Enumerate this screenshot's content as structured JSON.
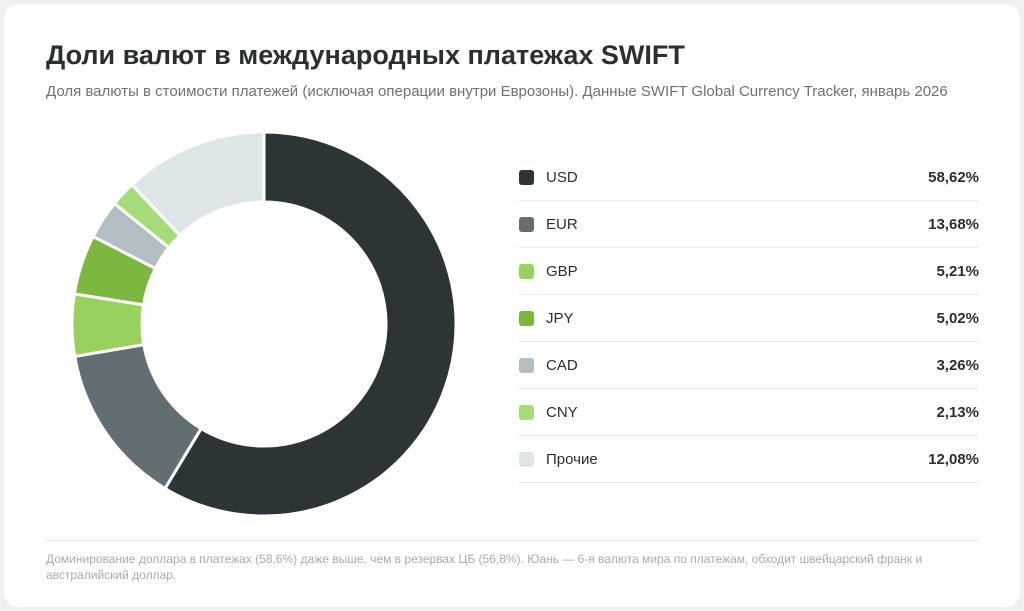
{
  "title": "Доли валют в международных платежах SWIFT",
  "subtitle": "Доля валюты в стоимости платежей (исключая операции внутри Еврозоны). Данные SWIFT Global Currency Tracker, январь 2026",
  "footnote": "Доминирование доллара в платежах (58,6%) даже выше, чем в резервах ЦБ (56,8%). Юань — 6-я валюта мира по платежам, обходит швейцарский франк и австралийский доллар.",
  "chart_data": {
    "type": "pie",
    "variant": "donut",
    "legend_position": "right",
    "categories": [
      "USD",
      "EUR",
      "GBP",
      "JPY",
      "CAD",
      "CNY",
      "Прочие"
    ],
    "values": [
      58.62,
      13.68,
      5.21,
      5.02,
      3.26,
      2.13,
      12.08
    ],
    "value_labels": [
      "58,62%",
      "13,68%",
      "5,21%",
      "5,02%",
      "3,26%",
      "2,13%",
      "12,08%"
    ],
    "colors": [
      "#2d3436",
      "#636e72",
      "#99d15e",
      "#7cb83f",
      "#b2bec3",
      "#a6db7a",
      "#dfe6e9"
    ]
  }
}
